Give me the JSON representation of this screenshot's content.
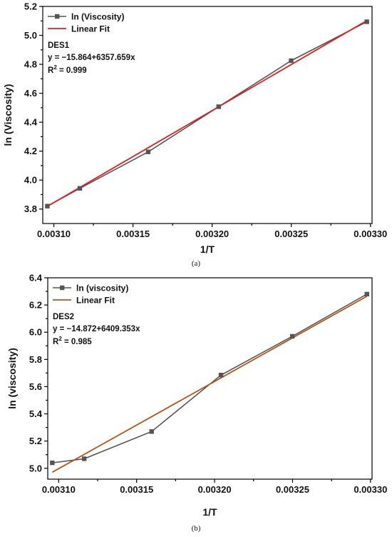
{
  "chart_data": [
    {
      "type": "line",
      "caption": "(a)",
      "xlabel": "1/T",
      "ylabel": "ln (Viscosity)",
      "xlim": [
        0.003093,
        0.003301
      ],
      "ylim": [
        3.7,
        5.2
      ],
      "xticks": [
        0.0031,
        0.00315,
        0.0032,
        0.00325,
        0.0033
      ],
      "xtick_labels": [
        "0.00310",
        "0.00315",
        "0.00320",
        "0.00325",
        "0.00330"
      ],
      "yticks": [
        3.8,
        4.0,
        4.2,
        4.4,
        4.6,
        4.8,
        5.0,
        5.2
      ],
      "ytick_labels": [
        "3.8",
        "4.0",
        "4.2",
        "4.4",
        "4.6",
        "4.8",
        "5.0",
        "5.2"
      ],
      "legend_position": "top-left",
      "grid": false,
      "series": [
        {
          "name": "ln (Viscosity)",
          "kind": "line-marker",
          "color": "#555555",
          "x": [
            0.0030959,
            0.0031164,
            0.0031596,
            0.0032041,
            0.0032499,
            0.0032977
          ],
          "y": [
            3.82,
            3.943,
            4.195,
            4.507,
            4.825,
            5.094
          ]
        },
        {
          "name": "Linear Fit",
          "kind": "fit",
          "color": "#e02020",
          "intercept": -15.864,
          "slope": 6357.659
        }
      ],
      "annotations": {
        "label": "DES1",
        "equation": "y = −15.864+6357.659x",
        "r2_prefix": "R",
        "r2_sup": "2",
        "r2_value": " = 0.999"
      }
    },
    {
      "type": "line",
      "caption": "(b)",
      "xlabel": "1/T",
      "ylabel": "ln (viscosity)",
      "xlim": [
        0.003093,
        0.003301
      ],
      "ylim": [
        4.92,
        6.4
      ],
      "xticks": [
        0.0031,
        0.00315,
        0.0032,
        0.00325,
        0.0033
      ],
      "xtick_labels": [
        "0.00310",
        "0.00315",
        "0.00320",
        "0.00325",
        "0.00330"
      ],
      "yticks": [
        5.0,
        5.2,
        5.4,
        5.6,
        5.8,
        6.0,
        6.2,
        6.4
      ],
      "ytick_labels": [
        "5.0",
        "5.2",
        "5.4",
        "5.6",
        "5.8",
        "6.0",
        "6.2",
        "6.4"
      ],
      "legend_position": "top-left",
      "grid": false,
      "series": [
        {
          "name": "ln (viscosity)",
          "kind": "line-marker",
          "color": "#555555",
          "x": [
            0.0030959,
            0.0031164,
            0.0031596,
            0.0032041,
            0.0032499,
            0.0032977
          ],
          "y": [
            5.04,
            5.07,
            5.27,
            5.685,
            5.97,
            6.28
          ]
        },
        {
          "name": "Linear Fit",
          "kind": "fit",
          "color": "#b5541a",
          "intercept": -14.872,
          "slope": 6409.353
        }
      ],
      "annotations": {
        "label": "DES2",
        "equation": "y = −14.872+6409.353x",
        "r2_prefix": "R",
        "r2_sup": "2",
        "r2_value": " = 0.985"
      }
    }
  ]
}
